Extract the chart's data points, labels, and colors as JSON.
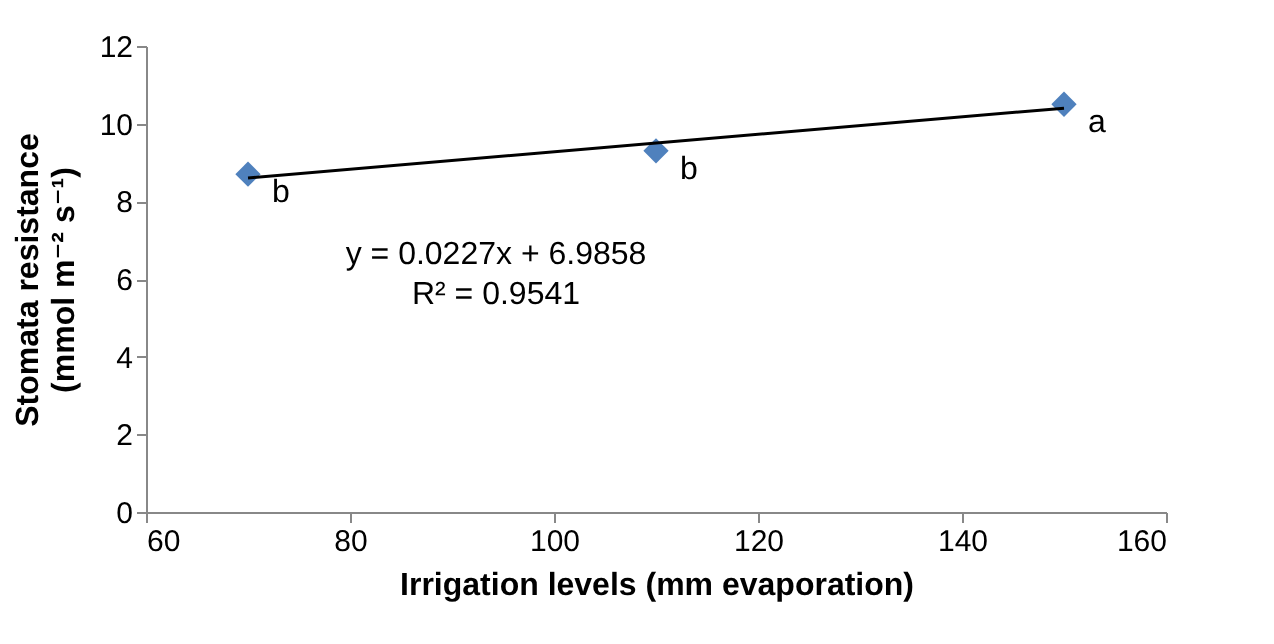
{
  "chart_data": {
    "type": "scatter",
    "xlabel": "Irrigation levels (mm evaporation)",
    "ylabel": "Stomata resistance\n(mmol m⁻² s⁻¹)",
    "x": [
      70,
      110,
      150
    ],
    "series": [
      {
        "color": "#4f81bd",
        "values": [
          8.7,
          9.3,
          10.5
        ],
        "marker": "diamond"
      },
      {
        "type": "line",
        "color": "#000000",
        "x": [
          70,
          150
        ],
        "values": [
          8.6,
          10.4
        ],
        "line_style": "solid"
      }
    ],
    "xlim": [
      60,
      160
    ],
    "xticks": [
      60,
      80,
      100,
      120,
      140,
      160
    ],
    "ylim": [
      0,
      12
    ],
    "yticks": [
      0,
      2,
      4,
      6,
      8,
      10,
      12
    ],
    "grid": false,
    "annotations": [
      {
        "text": "b",
        "x": 70,
        "y": 8.7
      },
      {
        "text": "b",
        "x": 110,
        "y": 9.3
      },
      {
        "text": "a",
        "x": 150,
        "y": 10.5
      },
      "y = 0.0227x + 6.9858",
      "R² = 0.9541"
    ]
  }
}
